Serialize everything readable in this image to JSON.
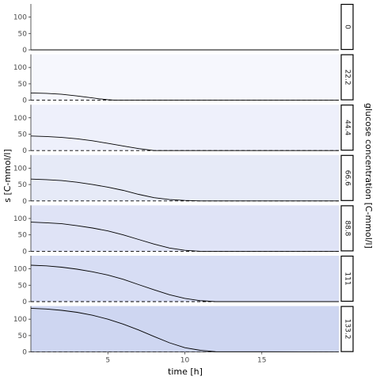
{
  "chart_data": {
    "type": "line",
    "facet_by": "glucose concentration [C-mmol/l]",
    "xlabel": "time [h]",
    "ylabel": "s [C-mmol/l]",
    "strip_title": "glucose concentration [C-mmol/l]",
    "xlim": [
      0,
      20
    ],
    "ylim": [
      0,
      140
    ],
    "x_ticks": [
      5,
      10,
      15
    ],
    "y_ticks": [
      0,
      50,
      100
    ],
    "reference_line": {
      "y": 0,
      "style": "dashed"
    },
    "grid": false,
    "panels": [
      {
        "facet": "0",
        "fill": "#ffffff",
        "x": [
          0,
          20
        ],
        "y": [
          0,
          0
        ]
      },
      {
        "facet": "22.2",
        "fill": "#f6f7fd",
        "x": [
          0,
          1,
          2,
          3,
          4,
          4.5,
          5,
          5.5,
          20
        ],
        "y": [
          22.2,
          21,
          18,
          13,
          7,
          4,
          1.5,
          0,
          0
        ]
      },
      {
        "facet": "44.4",
        "fill": "#eef0fb",
        "x": [
          0,
          1,
          2,
          3,
          4,
          5,
          6,
          7,
          7.5,
          8,
          20
        ],
        "y": [
          44.4,
          43,
          40,
          36,
          30,
          22,
          14,
          6,
          3,
          0,
          0
        ]
      },
      {
        "facet": "66.6",
        "fill": "#e6eaf7",
        "x": [
          0,
          1,
          2,
          3,
          4,
          5,
          6,
          7,
          8,
          9,
          10,
          11,
          20
        ],
        "y": [
          66.6,
          65,
          62,
          57,
          50,
          42,
          32,
          20,
          10,
          4,
          1.5,
          0,
          0
        ]
      },
      {
        "facet": "88.8",
        "fill": "#dfe3f6",
        "x": [
          0,
          1,
          2,
          3,
          4,
          5,
          6,
          7,
          8,
          9,
          10,
          11,
          20
        ],
        "y": [
          88.8,
          87,
          84,
          78,
          71,
          62,
          50,
          36,
          22,
          10,
          3,
          0,
          0
        ]
      },
      {
        "facet": "111",
        "fill": "#d7ddf4",
        "x": [
          0,
          1,
          2,
          3,
          4,
          5,
          6,
          7,
          8,
          9,
          10,
          11,
          12,
          20
        ],
        "y": [
          111,
          109,
          105,
          99,
          91,
          81,
          68,
          52,
          36,
          21,
          10,
          3,
          0,
          0
        ]
      },
      {
        "facet": "133.2",
        "fill": "#ced6f1",
        "x": [
          0,
          1,
          2,
          3,
          4,
          5,
          6,
          7,
          8,
          9,
          10,
          11,
          12,
          20
        ],
        "y": [
          133.2,
          131,
          127,
          121,
          112,
          100,
          85,
          67,
          47,
          28,
          13,
          5,
          1,
          0
        ]
      }
    ]
  }
}
